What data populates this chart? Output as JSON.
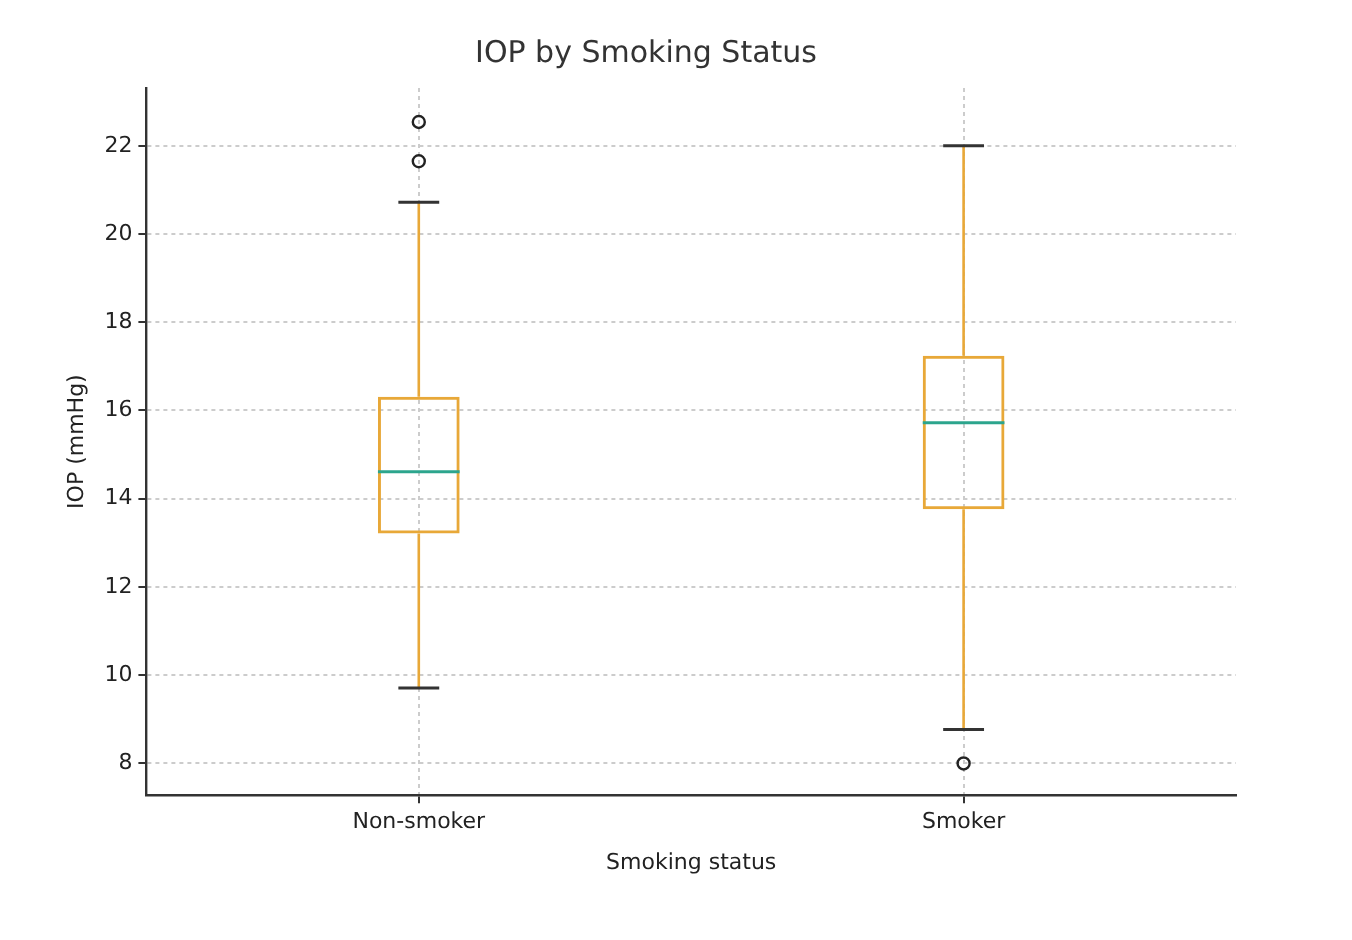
{
  "chart_data": {
    "type": "box",
    "title": "IOP by Smoking Status",
    "xlabel": "Smoking status",
    "ylabel": "IOP (mmHg)",
    "categories": [
      "Non-smoker",
      "Smoker"
    ],
    "boxes": [
      {
        "low": 9.71,
        "q1": 13.21,
        "median": 14.61,
        "q3": 16.31,
        "high": 20.72,
        "outliers": [
          22.54,
          21.65
        ]
      },
      {
        "low": 8.77,
        "q1": 13.76,
        "median": 15.72,
        "q3": 17.24,
        "high": 22.0,
        "outliers": [
          8.0
        ]
      }
    ],
    "color": "#e8a838",
    "ylim": [
      7.28,
      23.31
    ],
    "yticks": [
      8,
      10,
      12,
      14,
      16,
      18,
      20,
      22
    ],
    "grid": true
  }
}
